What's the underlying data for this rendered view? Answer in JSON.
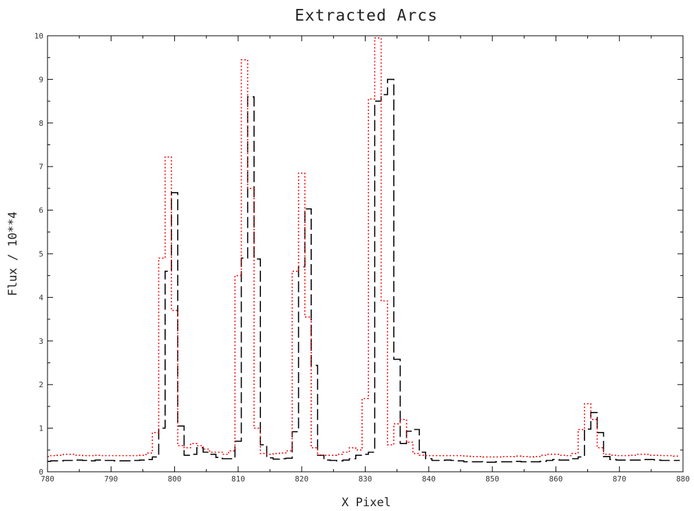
{
  "chart_data": {
    "type": "line",
    "title": "Extracted Arcs",
    "xlabel": "X Pixel",
    "ylabel": "Flux / 10**4",
    "xlim": [
      780,
      880
    ],
    "ylim": [
      0,
      10
    ],
    "xticks": [
      780,
      790,
      800,
      810,
      820,
      830,
      840,
      850,
      860,
      870,
      880
    ],
    "yticks": [
      0,
      1,
      2,
      3,
      4,
      5,
      6,
      7,
      8,
      9,
      10
    ],
    "grid": false,
    "legend": "none",
    "series": [
      {
        "style": "dashed",
        "color": "#000000",
        "step": true,
        "x": [
          780,
          781,
          782,
          783,
          784,
          785,
          786,
          787,
          788,
          789,
          790,
          791,
          792,
          793,
          794,
          795,
          796,
          797,
          798,
          799,
          800,
          801,
          802,
          803,
          804,
          805,
          806,
          807,
          808,
          809,
          810,
          811,
          812,
          813,
          814,
          815,
          816,
          817,
          818,
          819,
          820,
          821,
          822,
          823,
          824,
          825,
          826,
          827,
          828,
          829,
          830,
          831,
          832,
          833,
          834,
          835,
          836,
          837,
          838,
          839,
          840,
          841,
          842,
          843,
          844,
          845,
          846,
          847,
          848,
          849,
          850,
          851,
          852,
          853,
          854,
          855,
          856,
          857,
          858,
          859,
          860,
          861,
          862,
          863,
          864,
          865,
          866,
          867,
          868,
          869,
          870,
          871,
          872,
          873,
          874,
          875,
          876,
          877,
          878,
          879
        ],
        "y": [
          0.24,
          0.25,
          0.25,
          0.26,
          0.26,
          0.27,
          0.26,
          0.25,
          0.27,
          0.26,
          0.26,
          0.25,
          0.25,
          0.25,
          0.26,
          0.27,
          0.28,
          0.34,
          1.0,
          4.6,
          6.4,
          1.05,
          0.38,
          0.4,
          0.55,
          0.45,
          0.4,
          0.33,
          0.3,
          0.3,
          0.7,
          4.9,
          8.6,
          4.88,
          0.62,
          0.32,
          0.29,
          0.3,
          0.31,
          0.92,
          4.7,
          6.03,
          2.44,
          0.38,
          0.27,
          0.26,
          0.25,
          0.27,
          0.3,
          0.38,
          0.4,
          0.45,
          8.5,
          8.65,
          9.0,
          2.58,
          0.65,
          0.93,
          0.97,
          0.45,
          0.3,
          0.26,
          0.26,
          0.27,
          0.26,
          0.25,
          0.23,
          0.23,
          0.23,
          0.22,
          0.22,
          0.23,
          0.23,
          0.23,
          0.24,
          0.23,
          0.23,
          0.23,
          0.24,
          0.26,
          0.28,
          0.27,
          0.27,
          0.3,
          0.34,
          0.98,
          1.36,
          0.9,
          0.35,
          0.28,
          0.27,
          0.27,
          0.27,
          0.27,
          0.28,
          0.28,
          0.27,
          0.26,
          0.26,
          0.26
        ]
      },
      {
        "style": "dotted",
        "color": "#ee0000",
        "step": true,
        "x": [
          780,
          781,
          782,
          783,
          784,
          785,
          786,
          787,
          788,
          789,
          790,
          791,
          792,
          793,
          794,
          795,
          796,
          797,
          798,
          799,
          800,
          801,
          802,
          803,
          804,
          805,
          806,
          807,
          808,
          809,
          810,
          811,
          812,
          813,
          814,
          815,
          816,
          817,
          818,
          819,
          820,
          821,
          822,
          823,
          824,
          825,
          826,
          827,
          828,
          829,
          830,
          831,
          832,
          833,
          834,
          835,
          836,
          837,
          838,
          839,
          840,
          841,
          842,
          843,
          844,
          845,
          846,
          847,
          848,
          849,
          850,
          851,
          852,
          853,
          854,
          855,
          856,
          857,
          858,
          859,
          860,
          861,
          862,
          863,
          864,
          865,
          866,
          867,
          868,
          869,
          870,
          871,
          872,
          873,
          874,
          875,
          876,
          877,
          878,
          879
        ],
        "y": [
          0.35,
          0.37,
          0.38,
          0.4,
          0.4,
          0.38,
          0.37,
          0.37,
          0.38,
          0.37,
          0.37,
          0.37,
          0.37,
          0.37,
          0.37,
          0.38,
          0.43,
          0.9,
          4.9,
          7.22,
          3.7,
          0.6,
          0.55,
          0.65,
          0.6,
          0.52,
          0.45,
          0.45,
          0.4,
          0.48,
          4.5,
          9.45,
          6.5,
          1.0,
          0.42,
          0.4,
          0.42,
          0.43,
          0.48,
          4.6,
          6.85,
          3.55,
          0.55,
          0.38,
          0.38,
          0.38,
          0.4,
          0.45,
          0.55,
          0.5,
          1.68,
          8.55,
          9.95,
          3.92,
          0.62,
          1.1,
          1.2,
          0.68,
          0.42,
          0.38,
          0.37,
          0.37,
          0.37,
          0.37,
          0.37,
          0.37,
          0.36,
          0.35,
          0.35,
          0.34,
          0.34,
          0.34,
          0.35,
          0.35,
          0.36,
          0.35,
          0.34,
          0.35,
          0.38,
          0.4,
          0.4,
          0.38,
          0.37,
          0.42,
          0.97,
          1.56,
          1.2,
          0.55,
          0.4,
          0.38,
          0.37,
          0.37,
          0.38,
          0.4,
          0.4,
          0.38,
          0.38,
          0.37,
          0.37,
          0.36
        ]
      }
    ]
  }
}
